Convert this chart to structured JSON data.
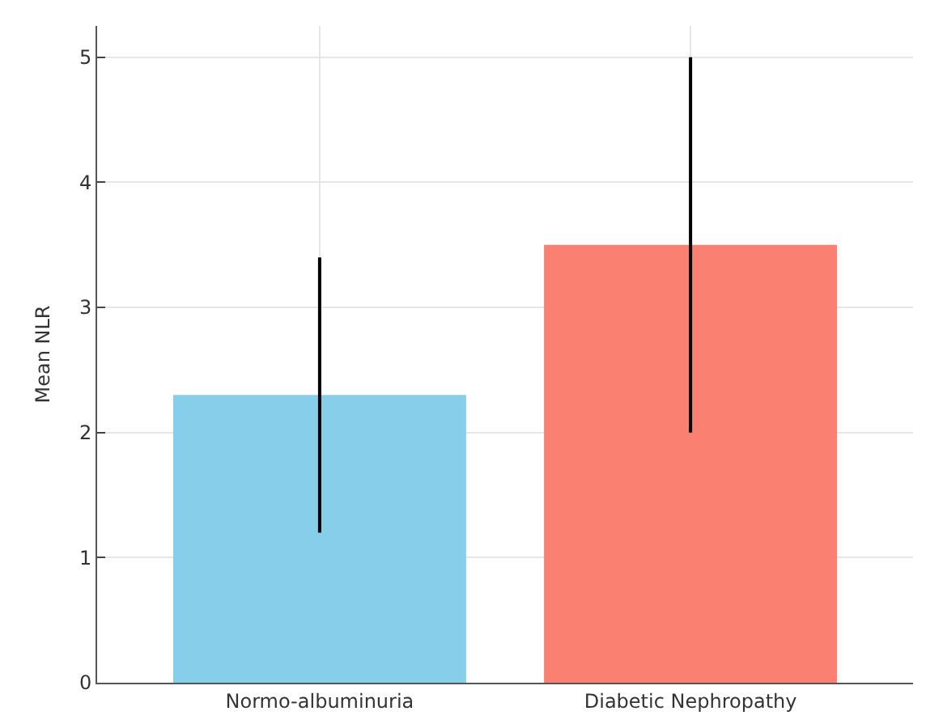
{
  "chart_data": {
    "type": "bar",
    "ylabel": "Mean NLR",
    "categories": [
      "Normo-albuminuria",
      "Diabetic Nephropathy"
    ],
    "values": [
      2.3,
      3.5
    ],
    "colors": [
      "#87ceeb",
      "#fa8072"
    ],
    "errors": [
      1.1,
      1.5
    ],
    "ylim": [
      0,
      5.25
    ],
    "yticks": [
      0,
      1,
      2,
      3,
      4,
      5
    ],
    "grid": true
  }
}
